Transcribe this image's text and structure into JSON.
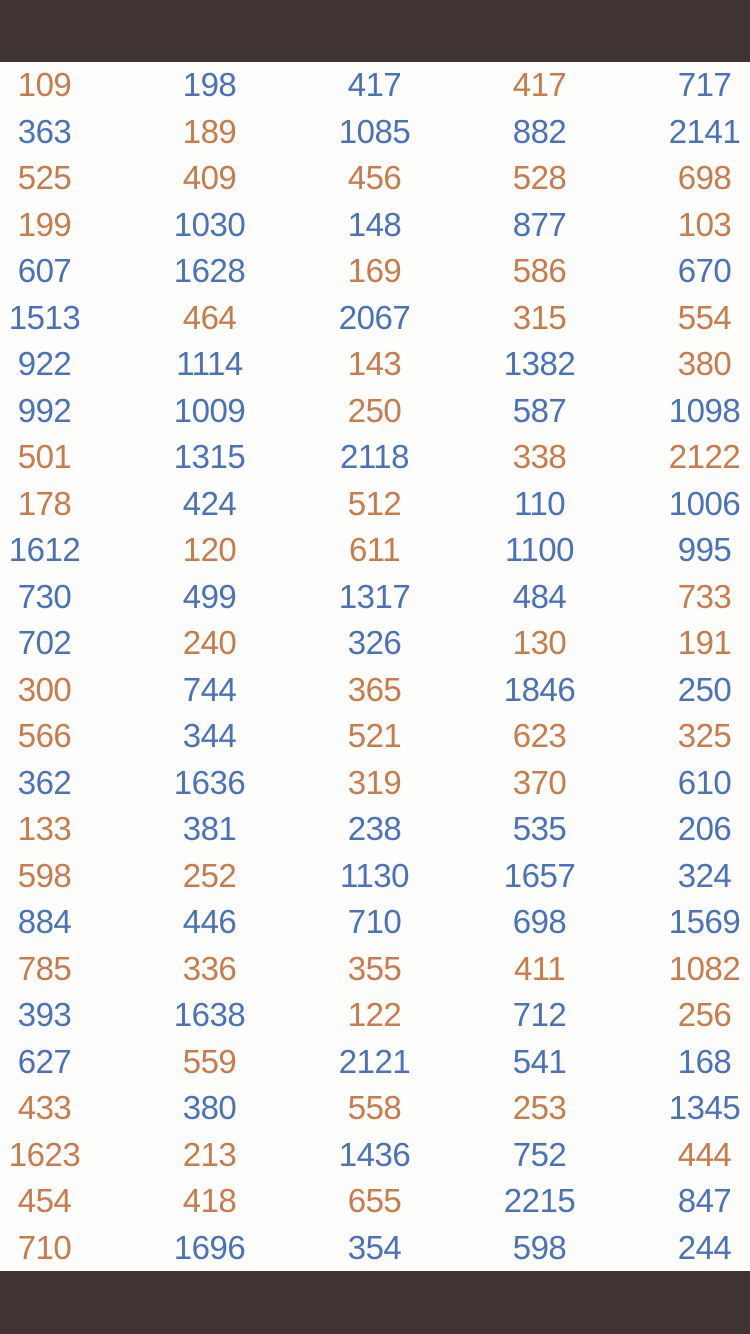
{
  "colors": {
    "blue": "#4a72ba",
    "orange": "#c97b4b",
    "bar": "#3f3334",
    "content_bg": "#fdfdfc"
  },
  "table": {
    "columns": 5,
    "rows": [
      {
        "cells": [
          {
            "value": "109",
            "color": "orange"
          },
          {
            "value": "198",
            "color": "blue"
          },
          {
            "value": "417",
            "color": "blue"
          },
          {
            "value": "417",
            "color": "orange"
          },
          {
            "value": "717",
            "color": "blue"
          }
        ]
      },
      {
        "cells": [
          {
            "value": "363",
            "color": "blue"
          },
          {
            "value": "189",
            "color": "orange"
          },
          {
            "value": "1085",
            "color": "blue"
          },
          {
            "value": "882",
            "color": "blue"
          },
          {
            "value": "2141",
            "color": "blue"
          }
        ]
      },
      {
        "cells": [
          {
            "value": "525",
            "color": "orange"
          },
          {
            "value": "409",
            "color": "orange"
          },
          {
            "value": "456",
            "color": "orange"
          },
          {
            "value": "528",
            "color": "orange"
          },
          {
            "value": "698",
            "color": "orange"
          }
        ]
      },
      {
        "cells": [
          {
            "value": "199",
            "color": "orange"
          },
          {
            "value": "1030",
            "color": "blue"
          },
          {
            "value": "148",
            "color": "blue"
          },
          {
            "value": "877",
            "color": "blue"
          },
          {
            "value": "103",
            "color": "orange"
          }
        ]
      },
      {
        "cells": [
          {
            "value": "607",
            "color": "blue"
          },
          {
            "value": "1628",
            "color": "blue"
          },
          {
            "value": "169",
            "color": "orange"
          },
          {
            "value": "586",
            "color": "orange"
          },
          {
            "value": "670",
            "color": "blue"
          }
        ]
      },
      {
        "cells": [
          {
            "value": "1513",
            "color": "blue"
          },
          {
            "value": "464",
            "color": "orange"
          },
          {
            "value": "2067",
            "color": "blue"
          },
          {
            "value": "315",
            "color": "orange"
          },
          {
            "value": "554",
            "color": "orange"
          }
        ]
      },
      {
        "cells": [
          {
            "value": "922",
            "color": "blue"
          },
          {
            "value": "1114",
            "color": "blue"
          },
          {
            "value": "143",
            "color": "orange"
          },
          {
            "value": "1382",
            "color": "blue"
          },
          {
            "value": "380",
            "color": "orange"
          }
        ]
      },
      {
        "cells": [
          {
            "value": "992",
            "color": "blue"
          },
          {
            "value": "1009",
            "color": "blue"
          },
          {
            "value": "250",
            "color": "orange"
          },
          {
            "value": "587",
            "color": "blue"
          },
          {
            "value": "1098",
            "color": "blue"
          }
        ]
      },
      {
        "cells": [
          {
            "value": "501",
            "color": "orange"
          },
          {
            "value": "1315",
            "color": "blue"
          },
          {
            "value": "2118",
            "color": "blue"
          },
          {
            "value": "338",
            "color": "orange"
          },
          {
            "value": "2122",
            "color": "orange"
          }
        ]
      },
      {
        "cells": [
          {
            "value": "178",
            "color": "orange"
          },
          {
            "value": "424",
            "color": "blue"
          },
          {
            "value": "512",
            "color": "orange"
          },
          {
            "value": "110",
            "color": "blue"
          },
          {
            "value": "1006",
            "color": "blue"
          }
        ]
      },
      {
        "cells": [
          {
            "value": "1612",
            "color": "blue"
          },
          {
            "value": "120",
            "color": "orange"
          },
          {
            "value": "611",
            "color": "orange"
          },
          {
            "value": "1100",
            "color": "blue"
          },
          {
            "value": "995",
            "color": "blue"
          }
        ]
      },
      {
        "cells": [
          {
            "value": "730",
            "color": "blue"
          },
          {
            "value": "499",
            "color": "blue"
          },
          {
            "value": "1317",
            "color": "blue"
          },
          {
            "value": "484",
            "color": "blue"
          },
          {
            "value": "733",
            "color": "orange"
          }
        ]
      },
      {
        "cells": [
          {
            "value": "702",
            "color": "blue"
          },
          {
            "value": "240",
            "color": "orange"
          },
          {
            "value": "326",
            "color": "blue"
          },
          {
            "value": "130",
            "color": "orange"
          },
          {
            "value": "191",
            "color": "orange"
          }
        ]
      },
      {
        "cells": [
          {
            "value": "300",
            "color": "orange"
          },
          {
            "value": "744",
            "color": "blue"
          },
          {
            "value": "365",
            "color": "orange"
          },
          {
            "value": "1846",
            "color": "blue"
          },
          {
            "value": "250",
            "color": "blue"
          }
        ]
      },
      {
        "cells": [
          {
            "value": "566",
            "color": "orange"
          },
          {
            "value": "344",
            "color": "blue"
          },
          {
            "value": "521",
            "color": "orange"
          },
          {
            "value": "623",
            "color": "orange"
          },
          {
            "value": "325",
            "color": "orange"
          }
        ]
      },
      {
        "cells": [
          {
            "value": "362",
            "color": "blue"
          },
          {
            "value": "1636",
            "color": "blue"
          },
          {
            "value": "319",
            "color": "orange"
          },
          {
            "value": "370",
            "color": "orange"
          },
          {
            "value": "610",
            "color": "blue"
          }
        ]
      },
      {
        "cells": [
          {
            "value": "133",
            "color": "orange"
          },
          {
            "value": "381",
            "color": "blue"
          },
          {
            "value": "238",
            "color": "blue"
          },
          {
            "value": "535",
            "color": "blue"
          },
          {
            "value": "206",
            "color": "blue"
          }
        ]
      },
      {
        "cells": [
          {
            "value": "598",
            "color": "orange"
          },
          {
            "value": "252",
            "color": "orange"
          },
          {
            "value": "1130",
            "color": "blue"
          },
          {
            "value": "1657",
            "color": "blue"
          },
          {
            "value": "324",
            "color": "blue"
          }
        ]
      },
      {
        "cells": [
          {
            "value": "884",
            "color": "blue"
          },
          {
            "value": "446",
            "color": "blue"
          },
          {
            "value": "710",
            "color": "blue"
          },
          {
            "value": "698",
            "color": "blue"
          },
          {
            "value": "1569",
            "color": "blue"
          }
        ]
      },
      {
        "cells": [
          {
            "value": "785",
            "color": "orange"
          },
          {
            "value": "336",
            "color": "orange"
          },
          {
            "value": "355",
            "color": "orange"
          },
          {
            "value": "411",
            "color": "orange"
          },
          {
            "value": "1082",
            "color": "orange"
          }
        ]
      },
      {
        "cells": [
          {
            "value": "393",
            "color": "blue"
          },
          {
            "value": "1638",
            "color": "blue"
          },
          {
            "value": "122",
            "color": "orange"
          },
          {
            "value": "712",
            "color": "blue"
          },
          {
            "value": "256",
            "color": "orange"
          }
        ]
      },
      {
        "cells": [
          {
            "value": "627",
            "color": "blue"
          },
          {
            "value": "559",
            "color": "orange"
          },
          {
            "value": "2121",
            "color": "blue"
          },
          {
            "value": "541",
            "color": "blue"
          },
          {
            "value": "168",
            "color": "blue"
          }
        ]
      },
      {
        "cells": [
          {
            "value": "433",
            "color": "orange"
          },
          {
            "value": "380",
            "color": "blue"
          },
          {
            "value": "558",
            "color": "orange"
          },
          {
            "value": "253",
            "color": "orange"
          },
          {
            "value": "1345",
            "color": "blue"
          }
        ]
      },
      {
        "cells": [
          {
            "value": "1623",
            "color": "orange"
          },
          {
            "value": "213",
            "color": "orange"
          },
          {
            "value": "1436",
            "color": "blue"
          },
          {
            "value": "752",
            "color": "blue"
          },
          {
            "value": "444",
            "color": "orange"
          }
        ]
      },
      {
        "cells": [
          {
            "value": "454",
            "color": "orange"
          },
          {
            "value": "418",
            "color": "orange"
          },
          {
            "value": "655",
            "color": "orange"
          },
          {
            "value": "2215",
            "color": "blue"
          },
          {
            "value": "847",
            "color": "blue"
          }
        ]
      },
      {
        "cells": [
          {
            "value": "710",
            "color": "orange"
          },
          {
            "value": "1696",
            "color": "blue"
          },
          {
            "value": "354",
            "color": "blue"
          },
          {
            "value": "598",
            "color": "blue"
          },
          {
            "value": "244",
            "color": "blue"
          }
        ]
      }
    ]
  }
}
